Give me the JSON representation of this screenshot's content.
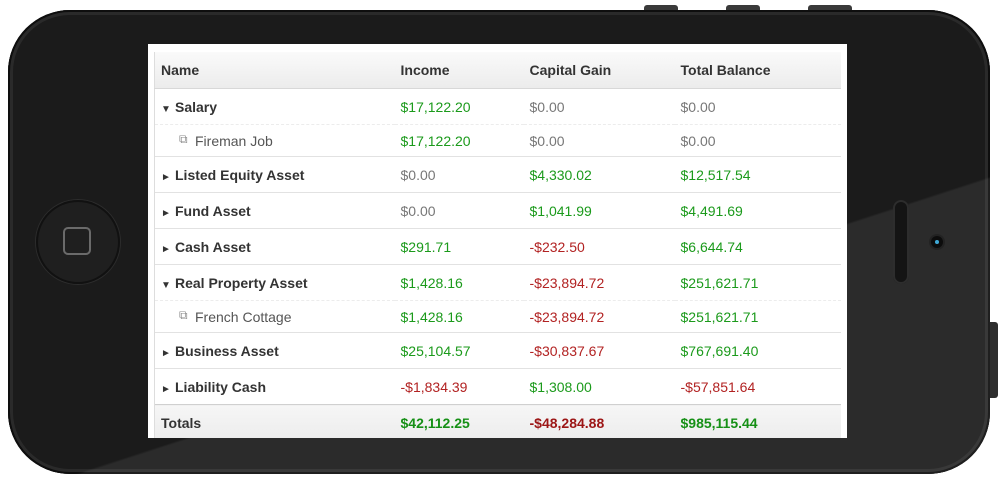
{
  "table": {
    "headers": [
      "Name",
      "Income",
      "Capital Gain",
      "Total Balance"
    ],
    "rows": [
      {
        "name": "Salary",
        "expanded": true,
        "income": "$17,122.20",
        "capital_gain": "$0.00",
        "total_balance": "$0.00",
        "children": [
          {
            "name": "Fireman Job",
            "income": "$17,122.20",
            "capital_gain": "$0.00",
            "total_balance": "$0.00"
          }
        ]
      },
      {
        "name": "Listed Equity Asset",
        "expanded": false,
        "income": "$0.00",
        "capital_gain": "$4,330.02",
        "total_balance": "$12,517.54"
      },
      {
        "name": "Fund Asset",
        "expanded": false,
        "income": "$0.00",
        "capital_gain": "$1,041.99",
        "total_balance": "$4,491.69"
      },
      {
        "name": "Cash Asset",
        "expanded": false,
        "income": "$291.71",
        "capital_gain": "-$232.50",
        "total_balance": "$6,644.74"
      },
      {
        "name": "Real Property Asset",
        "expanded": true,
        "income": "$1,428.16",
        "capital_gain": "-$23,894.72",
        "total_balance": "$251,621.71",
        "children": [
          {
            "name": "French Cottage",
            "income": "$1,428.16",
            "capital_gain": "-$23,894.72",
            "total_balance": "$251,621.71"
          }
        ]
      },
      {
        "name": "Business Asset",
        "expanded": false,
        "income": "$25,104.57",
        "capital_gain": "-$30,837.67",
        "total_balance": "$767,691.40"
      },
      {
        "name": "Liability Cash",
        "expanded": false,
        "income": "-$1,834.39",
        "capital_gain": "$1,308.00",
        "total_balance": "-$57,851.64"
      }
    ],
    "totals": {
      "label": "Totals",
      "income": "$42,112.25",
      "capital_gain": "-$48,284.88",
      "total_balance": "$985,115.44"
    }
  },
  "glyphs": {
    "expanded": "▼",
    "collapsed": "►",
    "external_link": "⧉"
  },
  "colors": {
    "positive": "#1b9a1b",
    "negative": "#b22222",
    "zero": "#777777",
    "camera_accent": "#3fa9d6"
  }
}
